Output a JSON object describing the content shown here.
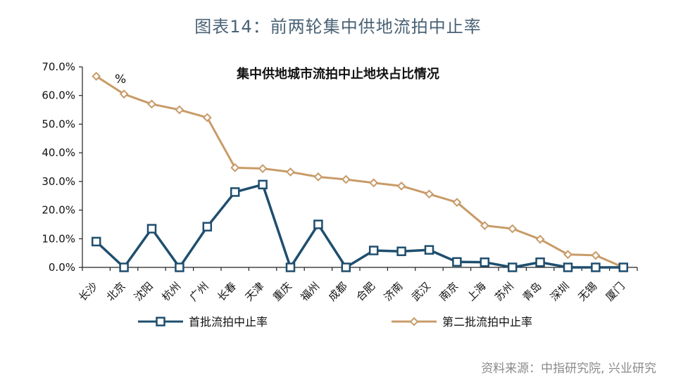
{
  "figure_title": "图表14：前两轮集中供地流拍中止率",
  "source_note": "资料来源：中指研究院, 兴业研究",
  "chart_data": {
    "type": "line",
    "title": "集中供地城市流拍中止地块占比情况",
    "unit_label": "%",
    "categories": [
      "长沙",
      "北京",
      "沈阳",
      "杭州",
      "广州",
      "长春",
      "天津",
      "重庆",
      "福州",
      "成都",
      "合肥",
      "济南",
      "武汉",
      "南京",
      "上海",
      "苏州",
      "青岛",
      "深圳",
      "无锡",
      "厦门"
    ],
    "yticks": [
      "0.0%",
      "10.0%",
      "20.0%",
      "30.0%",
      "40.0%",
      "50.0%",
      "60.0%",
      "70.0%"
    ],
    "ylim": [
      0,
      70
    ],
    "legend_position": "bottom",
    "series": [
      {
        "name": "首批流拍中止率",
        "color": "#1f4e6e",
        "marker": "square",
        "values": [
          9.0,
          0.0,
          13.5,
          0.0,
          14.2,
          26.3,
          28.9,
          0.0,
          15.0,
          0.0,
          5.9,
          5.6,
          6.1,
          1.9,
          1.8,
          0.0,
          1.8,
          0.0,
          0.0,
          0.0
        ]
      },
      {
        "name": "第二批流拍中止率",
        "color": "#c89b68",
        "marker": "diamond",
        "values": [
          66.7,
          60.5,
          57.0,
          55.0,
          52.3,
          34.8,
          34.5,
          33.3,
          31.6,
          30.7,
          29.5,
          28.4,
          25.6,
          22.7,
          14.6,
          13.5,
          9.8,
          4.5,
          4.2,
          0.0
        ]
      }
    ]
  }
}
